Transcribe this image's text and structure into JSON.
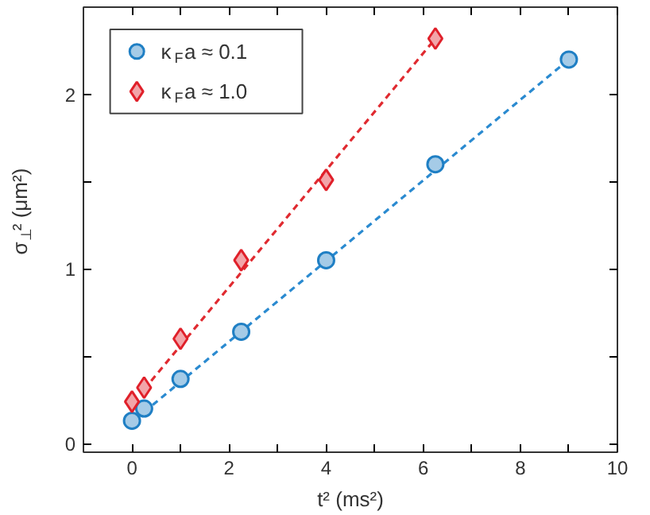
{
  "chart_data": {
    "type": "scatter",
    "xlabel": "t² (ms²)",
    "ylabel": "σ$_{⊥}$² (μm²)",
    "xlim": [
      -1,
      10
    ],
    "ylim": [
      -0.05,
      2.5
    ],
    "xticks": [
      0,
      {
        "value": 1,
        "label": null
      },
      2,
      {
        "value": 3,
        "label": null
      },
      4,
      {
        "value": 5,
        "label": null
      },
      6,
      {
        "value": 7,
        "label": null
      },
      8,
      {
        "value": 9,
        "label": null
      },
      10
    ],
    "yticks": [
      0,
      {
        "value": 0.5,
        "label": null
      },
      1,
      {
        "value": 1.5,
        "label": null
      },
      2
    ],
    "grid": false,
    "legend": "top left",
    "series": [
      {
        "type": "line",
        "line_style": "dashed",
        "color": "#2a8ad0",
        "x": [
          0.25,
          9
        ],
        "values": [
          0.18,
          2.2
        ]
      },
      {
        "type": "line",
        "line_style": "dashed",
        "color": "#e02a30",
        "x": [
          0.25,
          6.25
        ],
        "values": [
          0.31,
          2.32
        ]
      },
      {
        "name": "κ$_{F}$a ≈ 0.1",
        "marker": "circle",
        "color": "#1f7fc4",
        "x": [
          0,
          0.25,
          1,
          2.25,
          4,
          6.25,
          9
        ],
        "values": [
          0.13,
          0.2,
          0.37,
          0.64,
          1.05,
          1.6,
          2.2
        ]
      },
      {
        "name": "κ$_{F}$a ≈ 1.0",
        "marker": "diamond",
        "color": "#e0202a",
        "x": [
          0,
          0.25,
          1,
          2.25,
          4,
          6.25
        ],
        "values": [
          0.24,
          0.32,
          0.6,
          1.05,
          1.51,
          2.32
        ]
      }
    ]
  }
}
